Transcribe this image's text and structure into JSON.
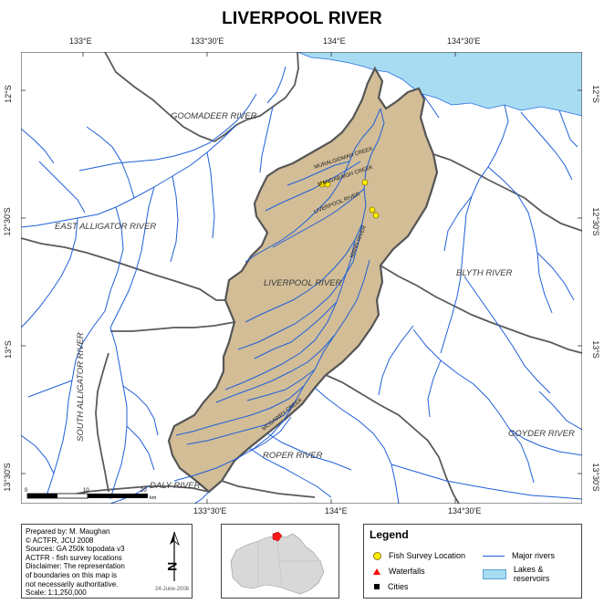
{
  "title": "LIVERPOOL RIVER",
  "graticule": {
    "top_longitudes": [
      "133°E",
      "133°30'E",
      "134°E",
      "134°30'E"
    ],
    "bottom_longitudes": [
      "133°30'E",
      "134°E",
      "134°30'E"
    ],
    "left_latitudes": [
      "12°S",
      "12°30'S",
      "13°S",
      "13°30'S"
    ],
    "right_latitudes": [
      "12°S",
      "12°30'S",
      "13°S",
      "13°30'S"
    ]
  },
  "map_labels": {
    "goomadeer": "GOOMADEER RIVER",
    "east_alligator": "EAST ALLIGATOR RIVER",
    "liverpool": "LIVERPOOL RIVER",
    "blyth": "BLYTH RIVER",
    "south_alligator": "SOUTH ALLIGATOR RIVER",
    "roper": "ROPER RIVER",
    "daly": "DALY RIVER",
    "goyder": "GOYDER RIVER",
    "muralgidmah": "MURALGIDMAH CREEK",
    "mangabaigh": "MANGABAIGH CREEK",
    "liverpool_small": "LIVERPOOL RIVER",
    "mann": "MANN RIVER",
    "mcgawry": "MCGAWRY CREEK"
  },
  "scale_bar": {
    "ticks": [
      "0",
      "10",
      "20"
    ],
    "unit": "km"
  },
  "info": {
    "lines": [
      "Prepared  by:  M.  Maughan",
      "©     ACTFR,     JCU     2008",
      "Sources: GA 250k topodata v3",
      "ACTFR - fish survey locations",
      "Disclaimer: The representation",
      "of boundaries on this map is",
      "not   necessarily   authoritative.",
      "Scale:   1:1,250,000"
    ],
    "date": "24-June-2008",
    "north_label": "N"
  },
  "legend": {
    "title": "Legend",
    "items": [
      {
        "label": "Fish Survey Location",
        "symbol": "yellow-circle"
      },
      {
        "label": "Waterfalls",
        "symbol": "red-triangle"
      },
      {
        "label": "Cities",
        "symbol": "black-square"
      },
      {
        "label": "Major rivers",
        "symbol": "blue-line"
      },
      {
        "label": "Lakes & reservoirs",
        "symbol": "lightblue-box"
      }
    ]
  },
  "colors": {
    "catchment_fill": "#d2bd97",
    "river": "#1f5fd8",
    "sea": "#a8dcf2",
    "boundary": "#555555",
    "survey_point": "#ffee00",
    "waterfall": "#ff0000"
  }
}
